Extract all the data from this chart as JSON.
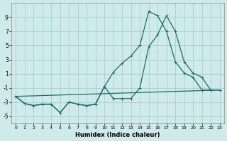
{
  "xlabel": "Humidex (Indice chaleur)",
  "bg_color": "#ceeaea",
  "grid_color": "#aacece",
  "line_color": "#1a6b6b",
  "xlim": [
    -0.5,
    23.5
  ],
  "ylim": [
    -6,
    11
  ],
  "xticks": [
    0,
    1,
    2,
    3,
    4,
    5,
    6,
    7,
    8,
    9,
    10,
    11,
    12,
    13,
    14,
    15,
    16,
    17,
    18,
    19,
    20,
    21,
    22,
    23
  ],
  "yticks": [
    -5,
    -3,
    -1,
    1,
    3,
    5,
    7,
    9
  ],
  "line1_x": [
    0,
    1,
    2,
    3,
    4,
    5,
    6,
    7,
    8,
    9,
    10,
    11,
    12,
    13,
    14,
    15,
    16,
    17,
    18,
    19,
    20,
    21,
    22,
    23
  ],
  "line1_y": [
    -2.2,
    -3.2,
    -3.5,
    -3.3,
    -3.3,
    -4.5,
    -3.0,
    -3.3,
    -3.5,
    -3.3,
    -0.8,
    -2.5,
    -2.5,
    -2.5,
    -1.0,
    4.8,
    6.5,
    9.2,
    7.0,
    2.7,
    1.1,
    0.5,
    -1.3,
    -1.3
  ],
  "line2_x": [
    0,
    1,
    2,
    3,
    4,
    5,
    6,
    7,
    8,
    9,
    10,
    11,
    12,
    13,
    14,
    15,
    16,
    17,
    18,
    19,
    20,
    21,
    22,
    23
  ],
  "line2_y": [
    -2.2,
    -3.2,
    -3.5,
    -3.3,
    -3.3,
    -4.5,
    -3.0,
    -3.3,
    -3.5,
    -3.3,
    -0.8,
    1.2,
    2.5,
    3.5,
    5.0,
    9.8,
    9.2,
    7.0,
    2.7,
    1.1,
    0.5,
    -1.3,
    -1.3,
    -1.3
  ],
  "line3_x": [
    0,
    23
  ],
  "line3_y": [
    -2.2,
    -1.3
  ],
  "marker_size": 2.5,
  "line_width": 0.9
}
